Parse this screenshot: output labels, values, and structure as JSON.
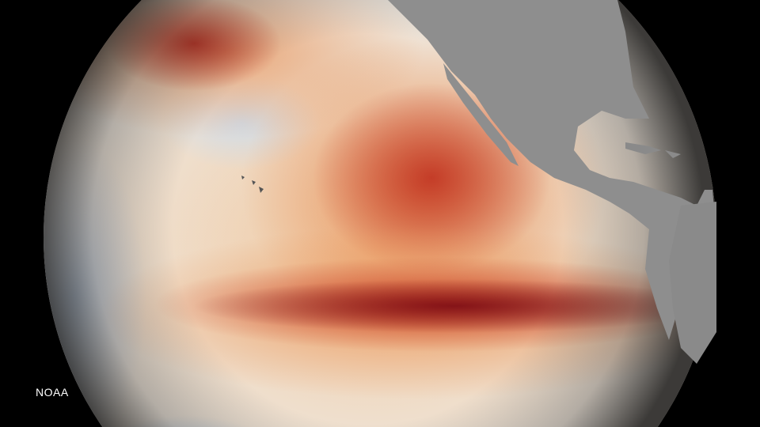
{
  "image": {
    "subject": "globe",
    "credit": "NOAA",
    "colors": {
      "warm_anomaly": "#b0202a",
      "mild_warm": "#e8a060",
      "neutral": "#efe8df",
      "cool_anomaly": "#a9c3de",
      "land": "#8c8c8c",
      "space": "#000000"
    }
  }
}
